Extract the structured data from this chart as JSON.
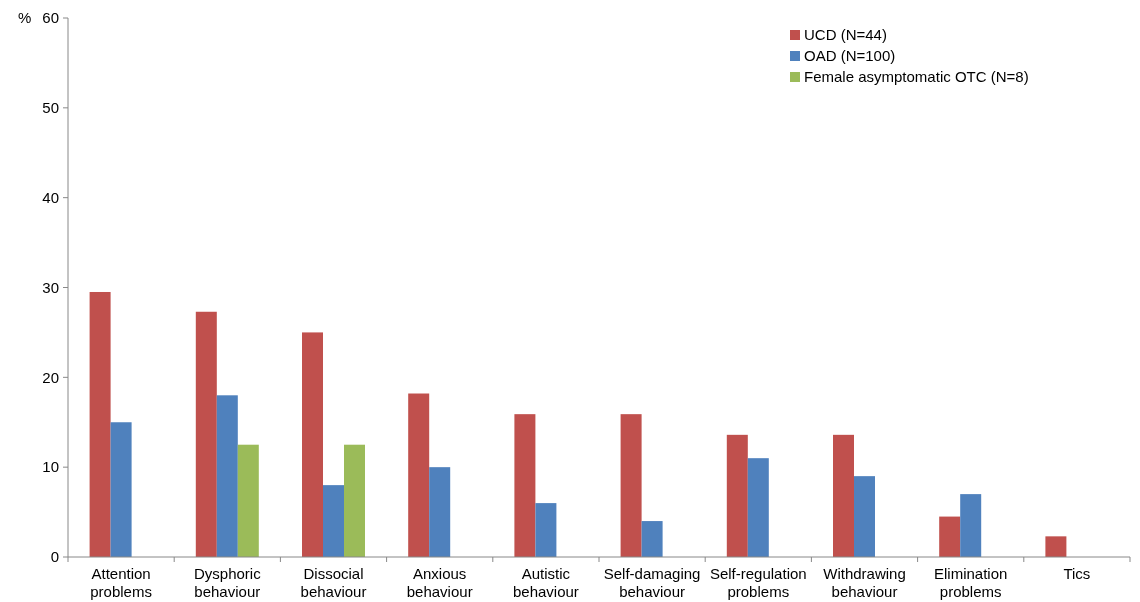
{
  "chart_data": {
    "type": "bar",
    "ylabel": "%",
    "categories": [
      "Attention problems",
      "Dysphoric behaviour",
      "Dissocial behaviour",
      "Anxious behaviour",
      "Autistic behaviour",
      "Self-damaging behaviour",
      "Self-regulation problems",
      "Withdrawing behaviour",
      "Elimination problems",
      "Tics"
    ],
    "series": [
      {
        "name": "UCD (N=44)",
        "color": "#c0504d",
        "values": [
          29.5,
          27.3,
          25.0,
          18.2,
          15.9,
          15.9,
          13.6,
          13.6,
          4.5,
          2.3
        ]
      },
      {
        "name": "OAD (N=100)",
        "color": "#4f81bd",
        "values": [
          15,
          18,
          8,
          10,
          6,
          4,
          11,
          9,
          7,
          null
        ]
      },
      {
        "name": "Female asymptomatic OTC (N=8)",
        "color": "#9bbb59",
        "values": [
          null,
          12.5,
          12.5,
          null,
          null,
          null,
          null,
          null,
          null,
          null
        ]
      }
    ],
    "ylim": [
      0,
      60
    ],
    "yticks": [
      0,
      10,
      20,
      30,
      40,
      50,
      60
    ],
    "grid": false,
    "legend": "top right"
  }
}
